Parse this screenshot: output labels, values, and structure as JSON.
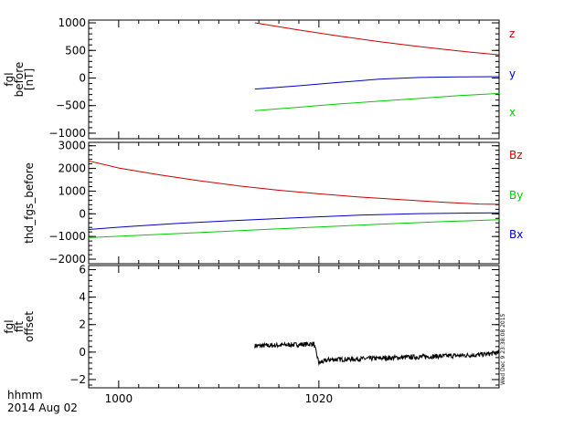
{
  "footer": {
    "time_format": "hhmm",
    "date": "2014 Aug 02",
    "stamp": "Wed Dec  9 23:38:08 2015"
  },
  "chart_data": [
    {
      "type": "line",
      "ylabel": [
        "fgl",
        "before",
        "[nT]"
      ],
      "xlim": [
        997,
        1038
      ],
      "ylim": [
        -1100,
        1050
      ],
      "yticks": [
        -1000,
        -500,
        0,
        500,
        1000
      ],
      "yticklabels": [
        "−1000",
        "−500",
        "0",
        "500",
        "1000"
      ],
      "series": [
        {
          "name": "z",
          "color": "#cc0000",
          "x": [
            1013.6,
            1018,
            1022,
            1026,
            1030,
            1034,
            1038
          ],
          "y": [
            1000,
            870,
            760,
            660,
            570,
            490,
            420
          ]
        },
        {
          "name": "y",
          "color": "#0000cc",
          "x": [
            1013.6,
            1018,
            1022,
            1026,
            1030,
            1034,
            1038
          ],
          "y": [
            -200,
            -140,
            -80,
            -20,
            10,
            20,
            25
          ]
        },
        {
          "name": "x",
          "color": "#00cc00",
          "x": [
            1013.6,
            1018,
            1022,
            1026,
            1030,
            1034,
            1038
          ],
          "y": [
            -590,
            -530,
            -470,
            -420,
            -370,
            -320,
            -280
          ]
        }
      ]
    },
    {
      "type": "line",
      "ylabel": [
        "thd_fgs_before"
      ],
      "xlim": [
        997,
        1038
      ],
      "ylim": [
        -2200,
        3150
      ],
      "yticks": [
        -2000,
        -1000,
        0,
        1000,
        2000,
        3000
      ],
      "yticklabels": [
        "−2000",
        "−1000",
        "0",
        "1000",
        "2000",
        "3000"
      ],
      "series": [
        {
          "name": "Bz",
          "color": "#cc0000",
          "x": [
            997,
            1000,
            1004,
            1008,
            1012,
            1016,
            1020,
            1024,
            1028,
            1032,
            1036,
            1038
          ],
          "y": [
            2330,
            2020,
            1720,
            1460,
            1230,
            1040,
            880,
            740,
            630,
            520,
            430,
            420
          ]
        },
        {
          "name": "By",
          "color": "#00cc00",
          "x": [
            997,
            1002,
            1008,
            1014,
            1020,
            1026,
            1032,
            1038
          ],
          "y": [
            -1050,
            -950,
            -830,
            -700,
            -580,
            -460,
            -350,
            -260
          ]
        },
        {
          "name": "Bx",
          "color": "#0000cc",
          "x": [
            997,
            1001,
            1006,
            1012,
            1018,
            1024,
            1030,
            1034,
            1038
          ],
          "y": [
            -690,
            -560,
            -420,
            -290,
            -170,
            -60,
            10,
            30,
            40
          ]
        }
      ]
    },
    {
      "type": "line",
      "ylabel": [
        "fgl",
        "fit",
        "offset"
      ],
      "xlim": [
        997,
        1038
      ],
      "ylim": [
        -2.6,
        6.3
      ],
      "yticks": [
        -2,
        0,
        2,
        4,
        6
      ],
      "yticklabels": [
        "−2",
        "0",
        "2",
        "4",
        "6"
      ],
      "xticks": [
        1000,
        1020
      ],
      "xticklabels": [
        "1000",
        "1020"
      ],
      "series": [
        {
          "color": "#000000",
          "x": [
            1013.6,
            1016,
            1018,
            1019.5,
            1020,
            1021,
            1024,
            1028,
            1032,
            1036,
            1038
          ],
          "y": [
            0.45,
            0.5,
            0.55,
            0.6,
            -0.8,
            -0.55,
            -0.5,
            -0.4,
            -0.3,
            -0.2,
            -0.05
          ]
        }
      ]
    }
  ]
}
